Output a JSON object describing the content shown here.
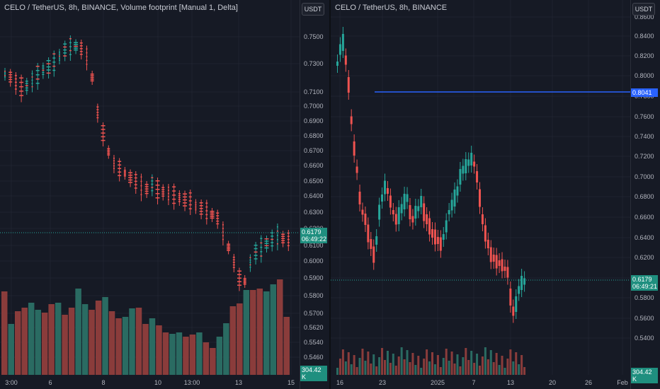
{
  "left_chart": {
    "legend": "CELO / TetherUS, 8h, BINANCE, Volume footprint [Manual 1, Delta]",
    "currency_button": "USDT",
    "y_ticks": [
      "0.7500",
      "0.7300",
      "0.7100",
      "0.7000",
      "0.6900",
      "0.6800",
      "0.6700",
      "0.6600",
      "0.6500",
      "0.6400",
      "0.6300",
      "0.6200",
      "0.6100",
      "0.6000",
      "0.5900",
      "0.5800",
      "0.5700",
      "0.5620",
      "0.5540",
      "0.5460"
    ],
    "x_ticks": [
      "3:00",
      "6",
      "8",
      "10",
      "13:00",
      "13",
      "15"
    ],
    "last_price": "0.6179",
    "countdown": "06:49:22",
    "volume_label": "304.42 K",
    "colors": {
      "up": "#26a69a",
      "down": "#ef5350",
      "up_volume": "#2a6b62",
      "down_volume": "#8a3c3b",
      "background": "#161a25"
    }
  },
  "right_chart": {
    "legend": "CELO / TetherUS, 8h, BINANCE",
    "currency_button": "USDT",
    "y_ticks": [
      "0.8600",
      "0.8400",
      "0.8200",
      "0.8000",
      "0.7800",
      "0.7600",
      "0.7400",
      "0.7200",
      "0.7000",
      "0.6800",
      "0.6600",
      "0.6400",
      "0.6200",
      "0.6000",
      "0.5800",
      "0.5600",
      "0.5400"
    ],
    "x_ticks": [
      "16",
      "23",
      "2025",
      "7",
      "13",
      "20",
      "26",
      "Feb"
    ],
    "horizontal_line_label": "0.8041",
    "last_price": "0.6179",
    "countdown": "06:49:21",
    "volume_label": "304.42 K",
    "colors": {
      "up": "#26a69a",
      "down": "#ef5350",
      "horizontal_line": "#2962ff",
      "background": "#161a25"
    }
  }
}
